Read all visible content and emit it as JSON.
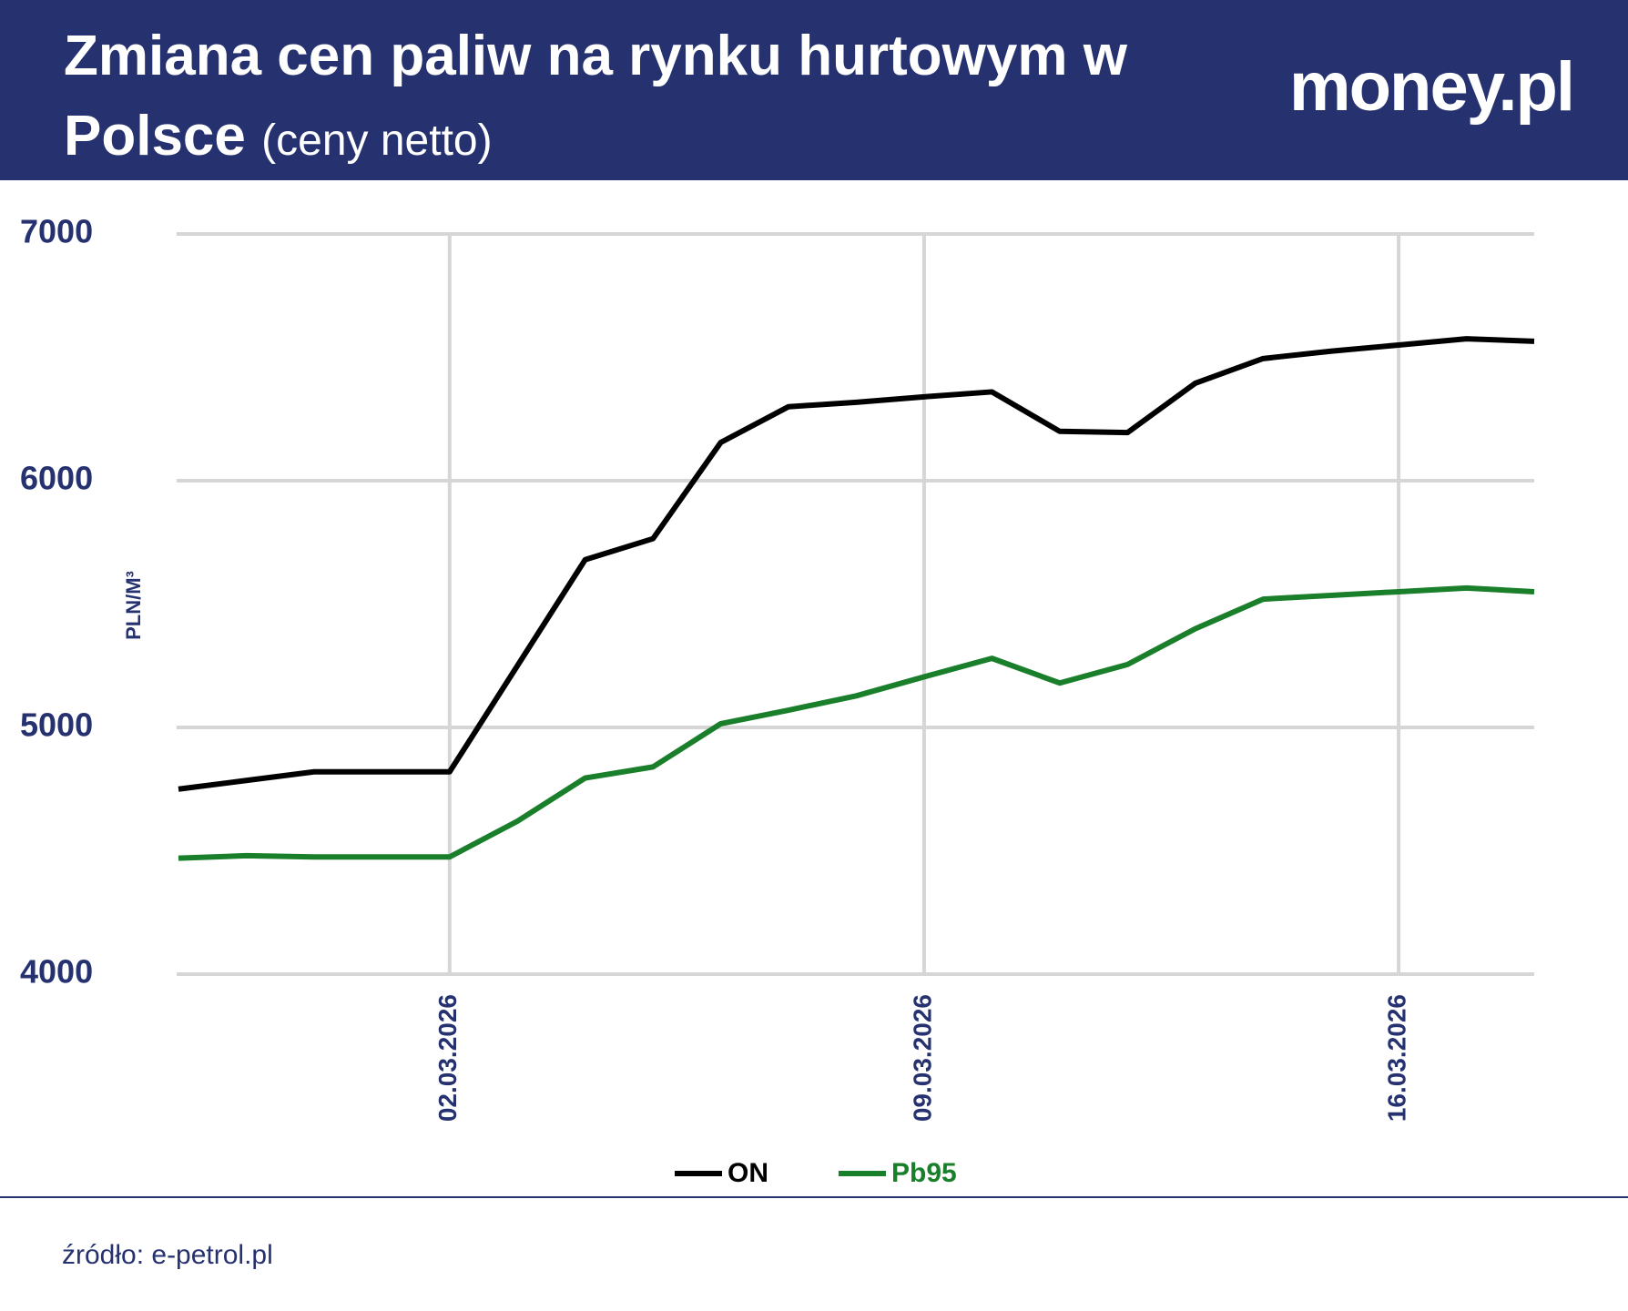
{
  "header": {
    "logo": "money.pl"
  },
  "chart_data": {
    "type": "line",
    "title": "Zmiana cen paliw na rynku hurtowym w Polsce",
    "subtitle": "(ceny netto)",
    "y_label": "PLN/M³",
    "categories": [
      null,
      null,
      null,
      null,
      "02.03.2026",
      null,
      null,
      null,
      null,
      null,
      null,
      "09.03.2026",
      null,
      null,
      null,
      null,
      null,
      null,
      "16.03.2026",
      null,
      null
    ],
    "series": [
      {
        "name": "ON",
        "color": "#000000",
        "values": [
          4750,
          4785,
          4820,
          4820,
          4820,
          5250,
          5680,
          5765,
          6155,
          6300,
          6318,
          6340,
          6360,
          6200,
          6195,
          6395,
          6495,
          6525,
          6550,
          6575,
          6565
        ]
      },
      {
        "name": "Pb95",
        "color": "#1a7f2a",
        "values": [
          4470,
          4480,
          4475,
          4475,
          4475,
          4620,
          4795,
          4840,
          5015,
          5070,
          5128,
          5205,
          5280,
          5180,
          5255,
          5400,
          5520,
          5535,
          5550,
          5565,
          5550
        ]
      }
    ],
    "ylim": [
      4000,
      7000
    ],
    "yticks": [
      4000,
      5000,
      6000,
      7000
    ],
    "grid": true,
    "source": "źródło: e-petrol.pl"
  }
}
